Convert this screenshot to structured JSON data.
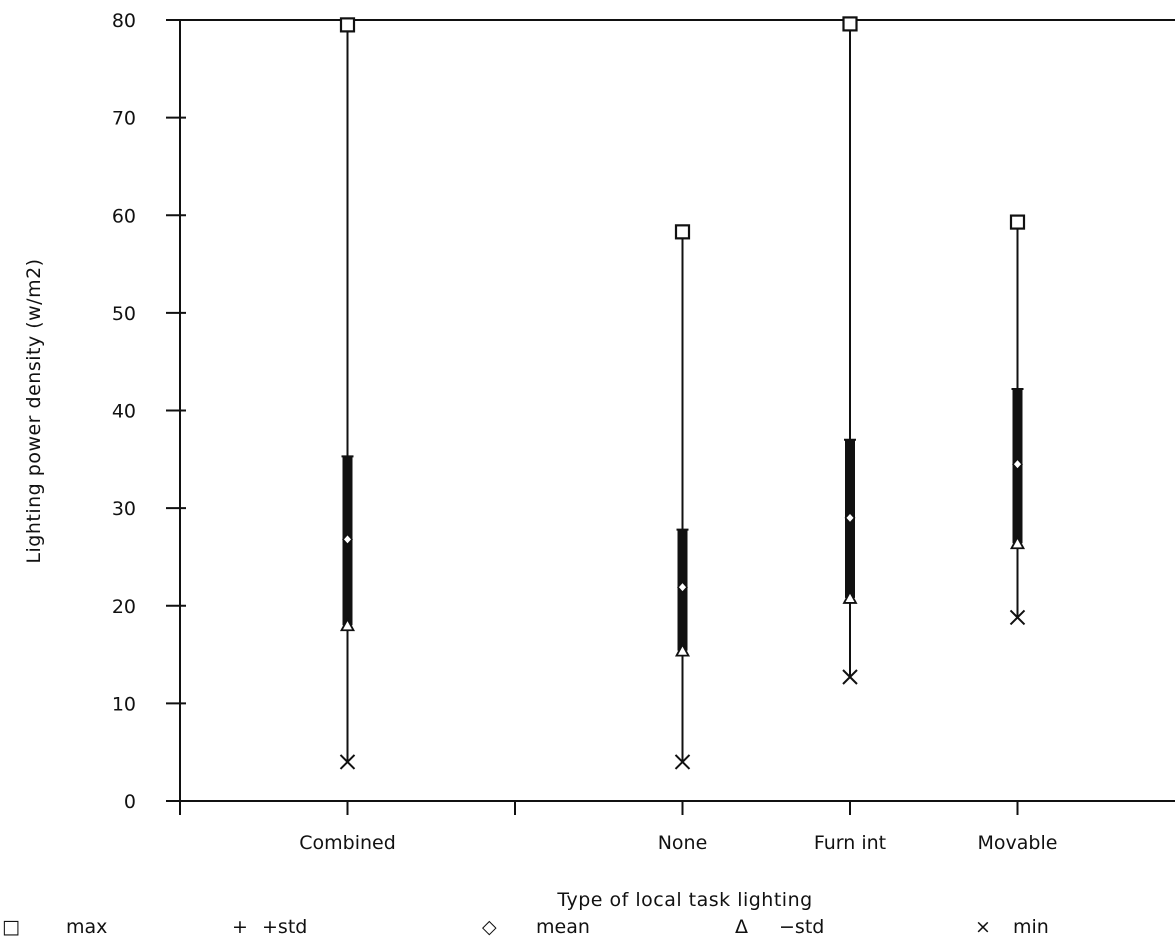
{
  "chart_data": {
    "type": "box",
    "title": "",
    "xlabel": "Type of local task lighting",
    "ylabel": "Lighting power density (w/m2)",
    "ylim": [
      0,
      80
    ],
    "yticks": [
      0,
      10,
      20,
      30,
      40,
      50,
      60,
      70,
      80
    ],
    "categories": [
      "Combined",
      "None",
      "Furn int",
      "Movable"
    ],
    "series": [
      {
        "name": "max",
        "values": [
          79.5,
          58.3,
          79.6,
          59.3
        ]
      },
      {
        "name": "+std",
        "values": [
          35.3,
          27.8,
          37.0,
          42.2
        ]
      },
      {
        "name": "mean",
        "values": [
          26.8,
          21.9,
          29.0,
          34.5
        ]
      },
      {
        "name": "-std",
        "values": [
          18.0,
          15.4,
          20.8,
          26.4
        ]
      },
      {
        "name": "min",
        "values": [
          4.0,
          4.0,
          12.7,
          18.8
        ]
      }
    ],
    "grid": false,
    "legend_position": "bottom"
  },
  "legend": [
    {
      "symbol": "□",
      "label": "max"
    },
    {
      "symbol": "+",
      "label": "+std"
    },
    {
      "symbol": "◇",
      "label": "mean"
    },
    {
      "symbol": "Δ",
      "label": "−std"
    },
    {
      "symbol": "×",
      "label": "min"
    }
  ],
  "colors": {
    "ink": "#111111",
    "background": "#ffffff"
  }
}
